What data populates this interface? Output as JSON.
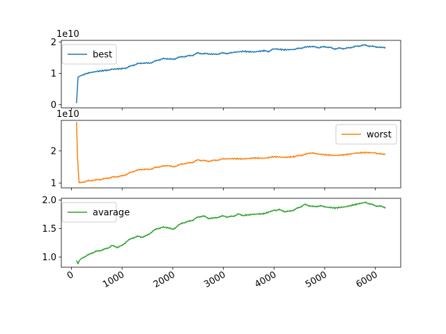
{
  "chart_data": {
    "type": "line",
    "shared_x": true,
    "xlim": [
      -200,
      6500
    ],
    "x_ticks": [
      0,
      1000,
      2000,
      3000,
      4000,
      5000,
      6000
    ],
    "x_tick_labels": [
      "0",
      "1000",
      "2000",
      "3000",
      "4000",
      "5000",
      "6000"
    ],
    "x_tick_label_rotation": 30,
    "grid": false,
    "subplots": [
      {
        "offset_label": "1e10",
        "ylim": [
          -0.1,
          2.05
        ],
        "y_ticks": [
          0,
          1,
          2
        ],
        "y_tick_labels": [
          "0",
          "1",
          "2"
        ],
        "legend_position": "upper-left",
        "series": [
          {
            "name": "best",
            "color": "#1f77b4",
            "x": [
              100,
              130,
              200,
              300,
              500,
              700,
              800,
              1000,
              1100,
              1200,
              1300,
              1400,
              1500,
              1600,
              1700,
              1800,
              1900,
              2000,
              2100,
              2200,
              2300,
              2400,
              2500,
              2600,
              2700,
              2800,
              2900,
              3000,
              3100,
              3200,
              3400,
              3600,
              3800,
              3900,
              4000,
              4200,
              4400,
              4500,
              4600,
              4700,
              4800,
              4900,
              5000,
              5100,
              5200,
              5300,
              5400,
              5500,
              5600,
              5700,
              5800,
              5900,
              6000,
              6100,
              6200
            ],
            "values": [
              0.05,
              0.88,
              0.94,
              1.0,
              1.06,
              1.1,
              1.13,
              1.15,
              1.18,
              1.25,
              1.3,
              1.33,
              1.32,
              1.35,
              1.42,
              1.46,
              1.47,
              1.44,
              1.5,
              1.53,
              1.55,
              1.58,
              1.65,
              1.62,
              1.63,
              1.6,
              1.62,
              1.65,
              1.63,
              1.67,
              1.7,
              1.68,
              1.72,
              1.7,
              1.78,
              1.75,
              1.76,
              1.8,
              1.82,
              1.86,
              1.84,
              1.82,
              1.85,
              1.82,
              1.78,
              1.8,
              1.79,
              1.82,
              1.85,
              1.88,
              1.9,
              1.86,
              1.85,
              1.82,
              1.83
            ]
          }
        ]
      },
      {
        "offset_label": "1e10",
        "ylim": [
          0.85,
          2.95
        ],
        "y_ticks": [
          1,
          2
        ],
        "y_tick_labels": [
          "1",
          "2"
        ],
        "legend_position": "upper-right",
        "series": [
          {
            "name": "worst",
            "color": "#ff7f0e",
            "x": [
              100,
              120,
              150,
              200,
              300,
              400,
              500,
              600,
              700,
              800,
              900,
              1000,
              1100,
              1200,
              1300,
              1400,
              1500,
              1600,
              1700,
              1800,
              1900,
              2000,
              2100,
              2200,
              2300,
              2400,
              2500,
              2600,
              2700,
              2800,
              2900,
              3000,
              3200,
              3400,
              3600,
              3800,
              4000,
              4200,
              4400,
              4500,
              4600,
              4700,
              4800,
              5000,
              5200,
              5400,
              5600,
              5800,
              6000,
              6100,
              6200
            ],
            "values": [
              2.9,
              1.8,
              1.0,
              1.02,
              1.06,
              1.08,
              1.1,
              1.12,
              1.15,
              1.18,
              1.2,
              1.22,
              1.28,
              1.35,
              1.4,
              1.43,
              1.42,
              1.45,
              1.5,
              1.52,
              1.55,
              1.5,
              1.55,
              1.6,
              1.62,
              1.65,
              1.72,
              1.7,
              1.68,
              1.7,
              1.72,
              1.75,
              1.76,
              1.75,
              1.78,
              1.77,
              1.82,
              1.8,
              1.82,
              1.86,
              1.88,
              1.94,
              1.92,
              1.88,
              1.86,
              1.88,
              1.93,
              1.95,
              1.94,
              1.9,
              1.9
            ]
          }
        ]
      },
      {
        "offset_label": "",
        "ylim": [
          0.82,
          2.03
        ],
        "y_ticks": [
          1.0,
          1.5,
          2.0
        ],
        "y_tick_labels": [
          "1.0",
          "1.5",
          "2.0"
        ],
        "legend_position": "upper-left",
        "series": [
          {
            "name": "avarage",
            "color": "#2ca02c",
            "x": [
              100,
              130,
              160,
              200,
              300,
              400,
              500,
              600,
              700,
              800,
              900,
              1000,
              1100,
              1200,
              1300,
              1400,
              1500,
              1600,
              1700,
              1800,
              1900,
              2000,
              2100,
              2200,
              2300,
              2400,
              2500,
              2600,
              2700,
              2800,
              2900,
              3000,
              3100,
              3200,
              3300,
              3400,
              3600,
              3800,
              4000,
              4100,
              4200,
              4300,
              4400,
              4500,
              4600,
              4700,
              4800,
              4900,
              5000,
              5200,
              5400,
              5600,
              5800,
              5900,
              6000,
              6100,
              6200
            ],
            "values": [
              0.94,
              0.88,
              0.95,
              0.98,
              1.02,
              1.07,
              1.1,
              1.12,
              1.15,
              1.2,
              1.17,
              1.2,
              1.28,
              1.33,
              1.36,
              1.35,
              1.38,
              1.45,
              1.5,
              1.52,
              1.52,
              1.48,
              1.55,
              1.6,
              1.62,
              1.65,
              1.7,
              1.72,
              1.68,
              1.68,
              1.7,
              1.72,
              1.7,
              1.72,
              1.75,
              1.73,
              1.75,
              1.76,
              1.82,
              1.83,
              1.8,
              1.8,
              1.83,
              1.87,
              1.92,
              1.9,
              1.88,
              1.9,
              1.88,
              1.86,
              1.88,
              1.92,
              1.96,
              1.93,
              1.9,
              1.89,
              1.87
            ]
          }
        ]
      }
    ]
  }
}
